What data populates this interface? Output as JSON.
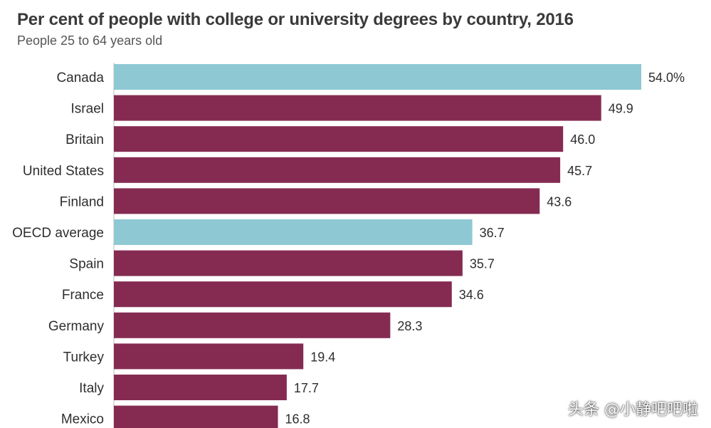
{
  "chart_data": {
    "type": "bar",
    "orientation": "horizontal",
    "title": "Per cent of people with college or university degrees by country, 2016",
    "subtitle": "People 25 to 64 years old",
    "xlabel": "",
    "ylabel": "",
    "xlim": [
      0,
      54
    ],
    "categories": [
      "Canada",
      "Israel",
      "Britain",
      "United States",
      "Finland",
      "OECD average",
      "Spain",
      "France",
      "Germany",
      "Turkey",
      "Italy",
      "Mexico"
    ],
    "values": [
      54.0,
      49.9,
      46.0,
      45.7,
      43.6,
      36.7,
      35.7,
      34.6,
      28.3,
      19.4,
      17.7,
      16.8
    ],
    "value_labels": [
      "54.0%",
      "49.9",
      "46.0",
      "45.7",
      "43.6",
      "36.7",
      "35.7",
      "34.6",
      "28.3",
      "19.4",
      "17.7",
      "16.8"
    ],
    "highlighted": [
      "Canada",
      "OECD average"
    ],
    "colors": {
      "default": "#852b52",
      "highlight": "#8ec8d3"
    },
    "grid": false,
    "legend": "none"
  },
  "watermark": {
    "text": "头条 @小静吧吧啦"
  }
}
